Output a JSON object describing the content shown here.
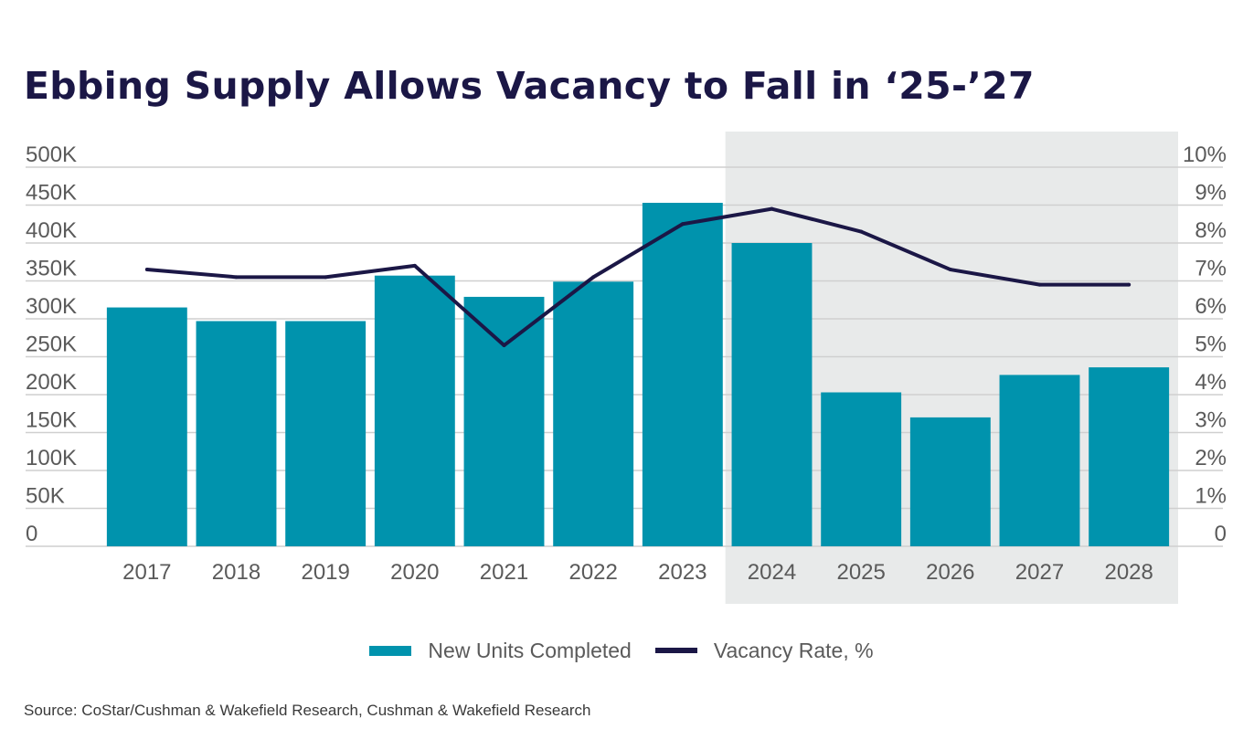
{
  "title": "Ebbing Supply Allows Vacancy to Fall in ‘25-’27",
  "source": "Source: CoStar/Cushman & Wakefield Research, Cushman & Wakefield Research",
  "colors": {
    "bar": "#0093ad",
    "line": "#1b1746",
    "forecast_shade": "#e8eaea",
    "grid": "#cfcfcf"
  },
  "chart_data": {
    "type": "bar",
    "categories": [
      "2017",
      "2018",
      "2019",
      "2020",
      "2021",
      "2022",
      "2023",
      "2024",
      "2025",
      "2026",
      "2027",
      "2028"
    ],
    "series": [
      {
        "name": "New Units Completed",
        "type": "bar",
        "axis": "left",
        "values": [
          315000,
          297000,
          297000,
          357000,
          329000,
          349000,
          453000,
          400000,
          203000,
          170000,
          226000,
          236000
        ]
      },
      {
        "name": "Vacancy Rate, %",
        "type": "line",
        "axis": "right",
        "values": [
          7.3,
          7.1,
          7.1,
          7.4,
          5.3,
          7.1,
          8.5,
          8.9,
          8.3,
          7.3,
          6.9,
          6.9
        ]
      }
    ],
    "y_left": {
      "ylim": [
        0,
        500000
      ],
      "ticks": [
        "0",
        "50K",
        "100K",
        "150K",
        "200K",
        "250K",
        "300K",
        "350K",
        "400K",
        "450K",
        "500K"
      ]
    },
    "y_right": {
      "ylim": [
        0,
        10
      ],
      "ticks": [
        "0",
        "1%",
        "2%",
        "3%",
        "4%",
        "5%",
        "6%",
        "7%",
        "8%",
        "9%",
        "10%"
      ]
    },
    "forecast_from": "2024",
    "grid": true,
    "legend": "bottom-center"
  }
}
